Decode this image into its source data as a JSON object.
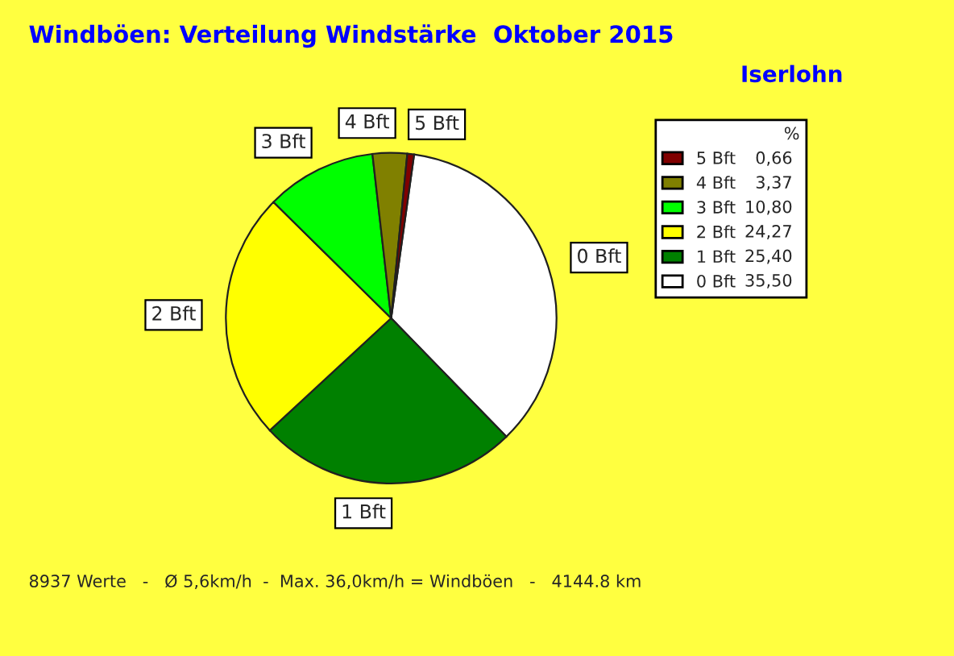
{
  "chart_data": {
    "type": "pie",
    "title": "Windböen: Verteilung Windstärke  Oktober 2015",
    "subtitle": "Iserlohn",
    "categories": [
      "0 Bft",
      "1 Bft",
      "2 Bft",
      "3 Bft",
      "4 Bft",
      "5 Bft"
    ],
    "values": [
      35.5,
      25.4,
      24.27,
      10.8,
      3.37,
      0.66
    ],
    "value_labels": [
      "35,50",
      "25,40",
      "24,27",
      "10,80",
      "3,37",
      "0,66"
    ],
    "colors": [
      "#ffffff",
      "#008000",
      "#ffff00",
      "#00ff00",
      "#808000",
      "#800000"
    ],
    "legend_title": "%",
    "legend": "top right",
    "annotations": [
      "8937 Werte   -   Ø 5,6km/h  -  Max. 36,0km/h = Windböen   -   4144.8 km"
    ]
  }
}
